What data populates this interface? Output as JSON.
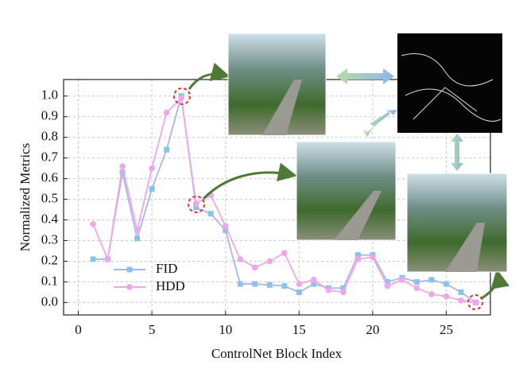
{
  "chart_data": {
    "type": "line",
    "x_label": "ControlNet Block Index",
    "y_label": "Normalized Metrics",
    "x": [
      1,
      2,
      3,
      4,
      5,
      6,
      7,
      8,
      9,
      10,
      11,
      12,
      13,
      14,
      15,
      16,
      17,
      18,
      19,
      20,
      21,
      22,
      23,
      24,
      25,
      26,
      27
    ],
    "series": [
      {
        "name": "FID",
        "color": "#86c5ea",
        "line_color": "#a9b4ea",
        "marker": "square",
        "values": [
          0.21,
          0.21,
          0.63,
          0.31,
          0.55,
          0.74,
          1.0,
          0.46,
          0.43,
          0.35,
          0.09,
          0.09,
          0.085,
          0.08,
          0.05,
          0.09,
          0.07,
          0.07,
          0.23,
          0.23,
          0.1,
          0.12,
          0.1,
          0.11,
          0.09,
          0.05,
          0.0
        ]
      },
      {
        "name": "HDD",
        "color": "#f0a6ea",
        "line_color": "#f0a6ea",
        "marker": "circle",
        "values": [
          0.38,
          0.21,
          0.66,
          0.35,
          0.65,
          0.92,
          0.99,
          0.48,
          0.52,
          0.37,
          0.21,
          0.17,
          0.2,
          0.24,
          0.09,
          0.11,
          0.06,
          0.05,
          0.21,
          0.22,
          0.08,
          0.11,
          0.07,
          0.04,
          0.03,
          0.01,
          0.0
        ]
      }
    ],
    "xlim": [
      -1,
      28
    ],
    "ylim": [
      -0.06,
      1.08
    ],
    "xticks": [
      0,
      5,
      10,
      15,
      20,
      25
    ],
    "yticks": [
      {
        "value": 0,
        "label": "0.0"
      },
      0.1,
      0.2,
      0.3,
      0.4,
      0.5,
      0.6,
      0.7,
      0.8,
      0.9,
      {
        "value": 1,
        "label": "1.0"
      }
    ],
    "grid": true,
    "legend": "lower-left"
  }
}
